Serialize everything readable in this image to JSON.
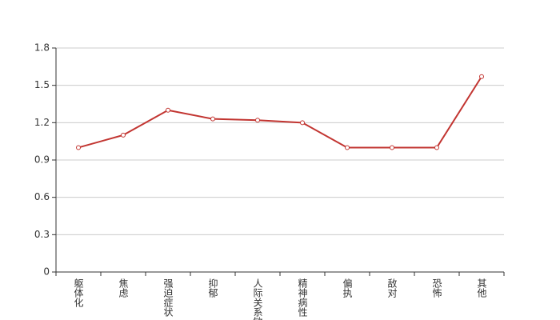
{
  "chart_data": {
    "type": "line",
    "categories": [
      "躯体化",
      "焦虑",
      "强迫症状",
      "抑郁",
      "人际关系敏感",
      "精神病性",
      "偏执",
      "敌对",
      "恐怖",
      "其他"
    ],
    "values": [
      1.0,
      1.1,
      1.3,
      1.23,
      1.22,
      1.2,
      1.0,
      1.0,
      1.0,
      1.57
    ],
    "color": "#c23531",
    "ylim": [
      0,
      1.8
    ],
    "yticks": [
      0,
      0.3,
      0.6,
      0.9,
      1.2,
      1.5,
      1.8
    ],
    "grid": true
  }
}
